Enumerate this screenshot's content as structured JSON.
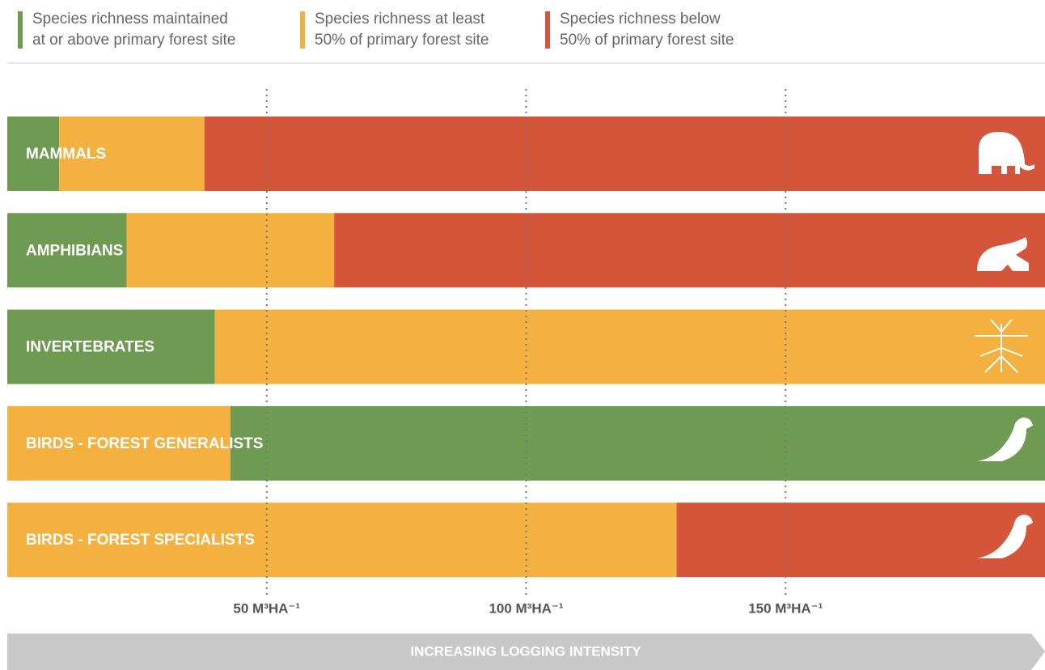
{
  "chart_data": {
    "type": "stacked-bar",
    "legend": [
      {
        "name": [
          "Species richness maintained",
          "at or above primary forest site"
        ],
        "color": "#6e9a52"
      },
      {
        "name": [
          "Species richness at least",
          "50% of primary forest site"
        ],
        "color": "#f5b13f"
      },
      {
        "name": [
          "Species richness below",
          "50% of primary forest site"
        ],
        "color": "#d5553a"
      }
    ],
    "bars": [
      {
        "label": "MAMMALS",
        "segments": [
          {
            "legend": 0,
            "value": 10
          },
          {
            "legend": 1,
            "value": 28
          },
          {
            "legend": 2,
            "value": 162
          }
        ]
      },
      {
        "label": "AMPHIBIANS",
        "segments": [
          {
            "legend": 0,
            "value": 23
          },
          {
            "legend": 1,
            "value": 40
          },
          {
            "legend": 2,
            "value": 137
          }
        ]
      },
      {
        "label": "INVERTEBRATES",
        "segments": [
          {
            "legend": 0,
            "value": 40
          },
          {
            "legend": 1,
            "value": 160
          }
        ]
      },
      {
        "label": "BIRDS - FOREST GENERALISTS",
        "segments": [
          {
            "legend": 1,
            "value": 43
          },
          {
            "legend": 0,
            "value": 157
          }
        ]
      },
      {
        "label": "BIRDS - FOREST SPECIALISTS",
        "segments": [
          {
            "legend": 1,
            "value": 129
          },
          {
            "legend": 2,
            "value": 71
          }
        ]
      }
    ],
    "xlim": [
      0,
      200
    ],
    "xticks": [
      {
        "value": 50,
        "label": "50 M³HA⁻¹"
      },
      {
        "value": 100,
        "label": "100 M³HA⁻¹"
      },
      {
        "value": 150,
        "label": "150 M³HA⁻¹"
      }
    ],
    "x_label": "INCREASING LOGGING INTENSITY"
  }
}
